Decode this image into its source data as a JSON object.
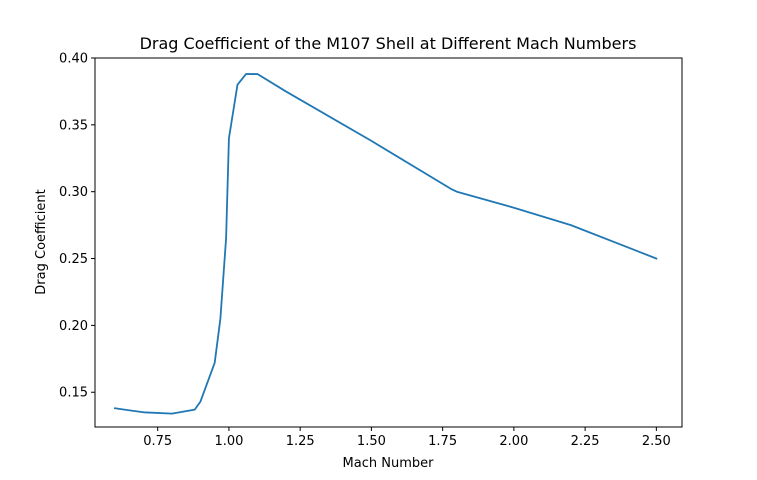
{
  "chart_data": {
    "type": "line",
    "title": "Drag Coefficient of the M107 Shell at Different Mach Numbers",
    "xlabel": "Mach Number",
    "ylabel": "Drag Coefficient",
    "xlim": [
      0.53,
      2.59
    ],
    "ylim": [
      0.124,
      0.4
    ],
    "xticks": [
      0.75,
      1.0,
      1.25,
      1.5,
      1.75,
      2.0,
      2.25,
      2.5
    ],
    "xtick_labels": [
      "0.75",
      "1.00",
      "1.25",
      "1.50",
      "1.75",
      "2.00",
      "2.25",
      "2.50"
    ],
    "yticks": [
      0.15,
      0.2,
      0.25,
      0.3,
      0.35,
      0.4
    ],
    "ytick_labels": [
      "0.15",
      "0.20",
      "0.25",
      "0.30",
      "0.35",
      "0.40"
    ],
    "grid": false,
    "series": [
      {
        "name": "Drag Coefficient",
        "color": "#1f77b4",
        "x": [
          0.6,
          0.7,
          0.8,
          0.88,
          0.9,
          0.95,
          0.97,
          0.99,
          1.0,
          1.03,
          1.06,
          1.1,
          1.2,
          1.5,
          1.78,
          1.8,
          2.0,
          2.2,
          2.5
        ],
        "y": [
          0.138,
          0.135,
          0.134,
          0.137,
          0.143,
          0.172,
          0.205,
          0.265,
          0.34,
          0.38,
          0.388,
          0.388,
          0.375,
          0.338,
          0.302,
          0.3,
          0.288,
          0.275,
          0.25
        ]
      }
    ]
  }
}
